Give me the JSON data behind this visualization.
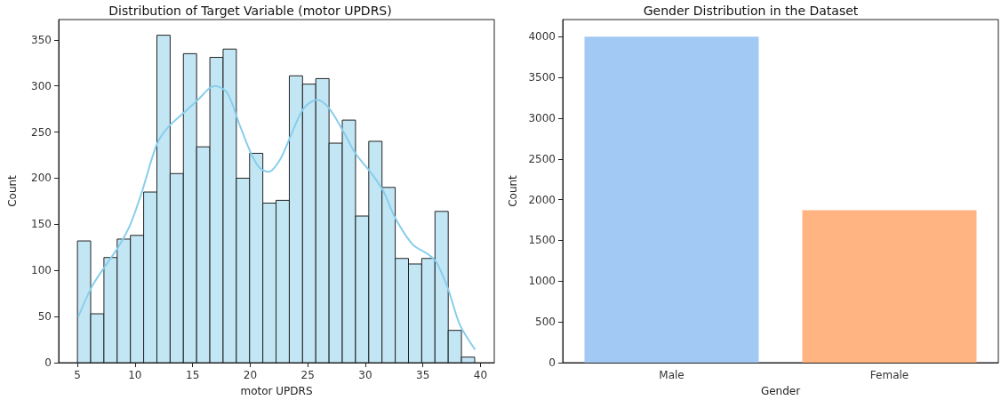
{
  "chart_data": [
    {
      "type": "histogram",
      "title": "Distribution of Target Variable (motor UPDRS)",
      "xlabel": "motor UPDRS",
      "ylabel": "Count",
      "bins": [
        5.0,
        6.15,
        7.3,
        8.45,
        9.6,
        10.75,
        11.9,
        13.05,
        14.2,
        15.35,
        16.5,
        17.65,
        18.8,
        19.95,
        21.1,
        22.25,
        23.4,
        24.55,
        25.7,
        26.85,
        28.0,
        29.15,
        30.3,
        31.45,
        32.6,
        33.75,
        34.9,
        36.05,
        37.2,
        38.35,
        39.5
      ],
      "series": [
        {
          "type": "histogram",
          "color": "#c3e6f5",
          "values": [
            132,
            53,
            114,
            134,
            138,
            185,
            355,
            205,
            335,
            234,
            331,
            340,
            200,
            227,
            173,
            176,
            311,
            302,
            308,
            238,
            263,
            159,
            240,
            190,
            113,
            107,
            113,
            164,
            35,
            6
          ]
        },
        {
          "type": "line",
          "color": "#87ceeb",
          "x": [
            5.08,
            6.28,
            7.43,
            8.58,
            9.6,
            10.62,
            11.9,
            12.92,
            14.33,
            15.47,
            16.5,
            17.0,
            18.03,
            19.05,
            20.07,
            20.84,
            21.6,
            22.63,
            23.65,
            24.67,
            25.82,
            26.84,
            27.99,
            29.14,
            30.55,
            31.57,
            32.59,
            34.12,
            35.4,
            36.17,
            37.19,
            38.21,
            39.54
          ],
          "values": [
            50,
            83,
            105,
            126,
            150,
            186,
            237,
            256,
            272,
            285,
            298,
            300,
            292,
            259,
            227,
            211,
            207,
            221,
            250,
            276,
            285,
            276,
            253,
            227,
            205,
            186,
            157,
            128,
            118,
            109,
            80,
            41,
            14
          ]
        }
      ],
      "xlim": [
        3.37,
        41.2
      ],
      "xticks": [
        5,
        10,
        15,
        20,
        25,
        30,
        35,
        40
      ],
      "ylim": [
        0,
        372
      ],
      "yticks": [
        0,
        50,
        100,
        150,
        200,
        250,
        300,
        350
      ]
    },
    {
      "type": "bar",
      "title": "Gender Distribution in the Dataset",
      "xlabel": "Gender",
      "ylabel": "Count",
      "categories": [
        "Male",
        "Female"
      ],
      "values": [
        4000,
        1870
      ],
      "colors": [
        "#a1c9f4",
        "#ffb482"
      ],
      "ylim": [
        0,
        4210
      ],
      "yticks": [
        0,
        500,
        1000,
        1500,
        2000,
        2500,
        3000,
        3500,
        4000
      ]
    }
  ]
}
